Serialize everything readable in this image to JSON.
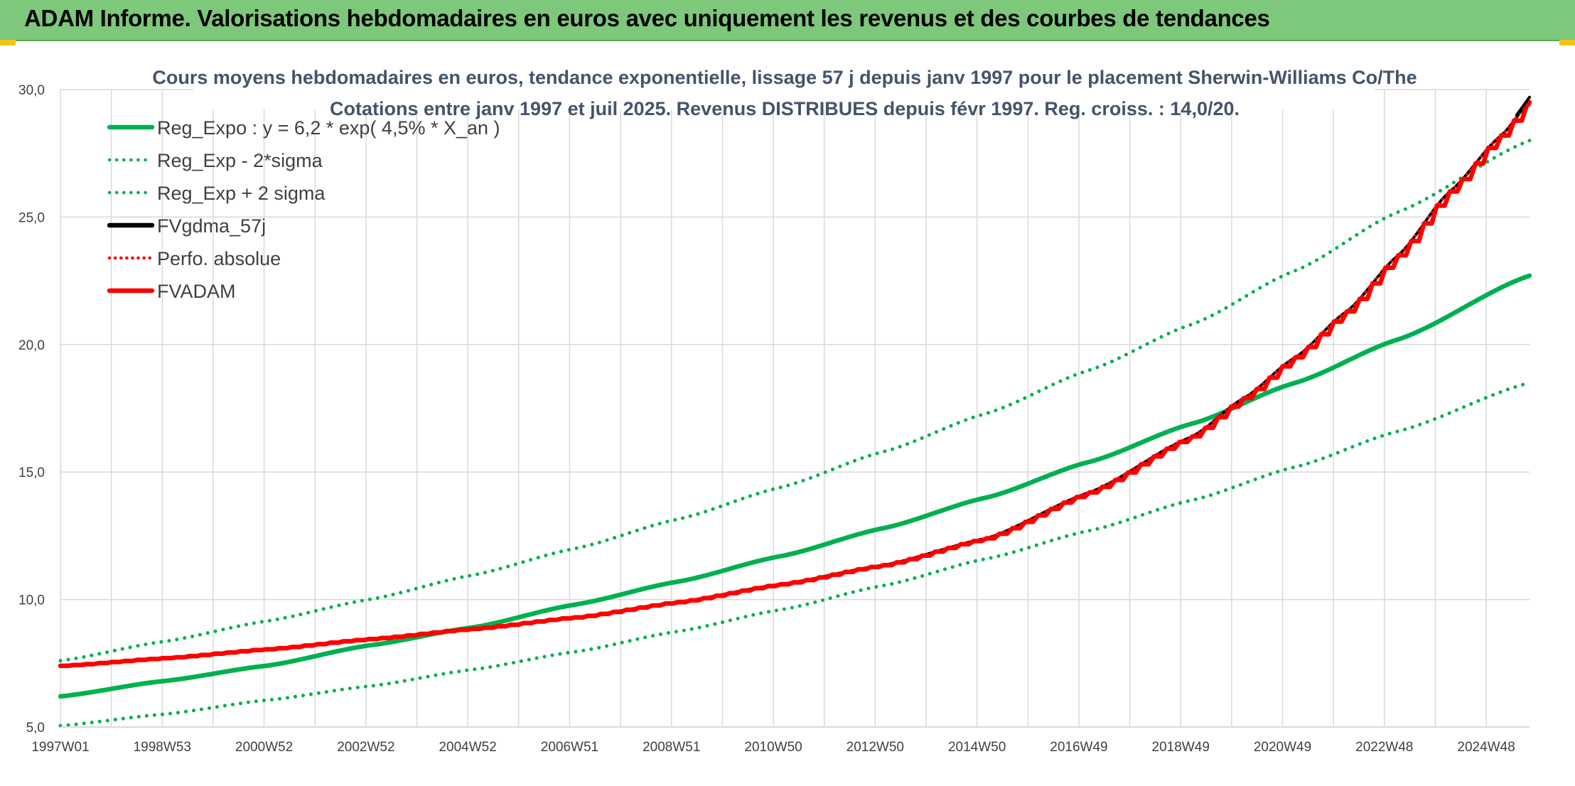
{
  "header": {
    "title": "ADAM Informe. Valorisations hebdomadaires en euros avec uniquement les revenus et des courbes de tendances"
  },
  "colors": {
    "header_bg": "#7dc87a",
    "trend_green": "#00b050",
    "fvadam_red": "#ff0000",
    "fvgdma_black": "#000000",
    "title_text": "#44546a"
  },
  "chart_data": {
    "type": "line",
    "title": "Cours moyens hebdomadaires en euros, tendance exponentielle, lissage 57 j depuis janv 1997 pour le placement Sherwin-Williams Co/The",
    "subtitle": "Cotations entre janv 1997 et juil 2025. Revenus DISTRIBUES depuis févr 1997. Reg. croiss. : 14,0/20.",
    "xlabel": "",
    "ylabel": "",
    "ylim": [
      5,
      30
    ],
    "xlim": [
      1997.0,
      2025.55
    ],
    "y_ticks": [
      "5,0",
      "10,0",
      "15,0",
      "20,0",
      "25,0",
      "30,0"
    ],
    "x_tick_labels": [
      "1997W01",
      "1998W53",
      "2000W52",
      "2002W52",
      "2004W52",
      "2006W51",
      "2008W51",
      "2010W50",
      "2012W50",
      "2014W50",
      "2016W49",
      "2018W49",
      "2020W49",
      "2022W48",
      "2024W48"
    ],
    "grid": true,
    "legend_position": "top-left",
    "series": [
      {
        "name": "Reg_Expo : y = 6,2 * exp( 4,5% *  X_an )",
        "style": "solid-green",
        "x": [
          1997,
          1999,
          2001,
          2003,
          2005,
          2007,
          2009,
          2011,
          2013,
          2015,
          2017,
          2019,
          2021,
          2023,
          2025.55
        ],
        "values": [
          6.2,
          6.8,
          7.4,
          8.2,
          8.9,
          9.8,
          10.7,
          11.7,
          12.8,
          14.0,
          15.4,
          16.9,
          18.5,
          20.2,
          22.7
        ]
      },
      {
        "name": "Reg_Exp - 2*sigma",
        "style": "dotted-green",
        "x": [
          1997,
          1999,
          2001,
          2003,
          2005,
          2007,
          2009,
          2011,
          2013,
          2015,
          2017,
          2019,
          2021,
          2023,
          2025.55
        ],
        "values": [
          5.05,
          5.5,
          6.05,
          6.6,
          7.25,
          7.95,
          8.75,
          9.6,
          10.55,
          11.6,
          12.7,
          13.9,
          15.2,
          16.6,
          18.5
        ]
      },
      {
        "name": "Reg_Exp + 2 sigma",
        "style": "dotted-green",
        "x": [
          1997,
          1999,
          2001,
          2003,
          2005,
          2007,
          2009,
          2011,
          2013,
          2015,
          2017,
          2019,
          2021,
          2023,
          2025.55
        ],
        "values": [
          7.6,
          8.35,
          9.15,
          10.0,
          10.95,
          12.0,
          13.15,
          14.4,
          15.8,
          17.3,
          19.0,
          20.8,
          22.9,
          25.2,
          28.0
        ]
      },
      {
        "name": "FVgdma_57j",
        "style": "solid-black",
        "x": [
          1997,
          1999,
          2001,
          2003,
          2005,
          2007,
          2009,
          2011,
          2013,
          2015,
          2017,
          2019,
          2020,
          2021,
          2022,
          2023,
          2024,
          2025,
          2025.55
        ],
        "values": [
          7.4,
          7.7,
          8.05,
          8.45,
          8.85,
          9.3,
          9.9,
          10.6,
          11.35,
          12.4,
          14.2,
          16.4,
          17.9,
          19.5,
          21.3,
          23.5,
          26.0,
          28.2,
          29.5
        ]
      },
      {
        "name": "Perfo. absolue",
        "style": "dotted-red",
        "x": [
          1997,
          1999,
          2001,
          2003,
          2005,
          2007,
          2009,
          2011,
          2013,
          2015,
          2017,
          2019,
          2020,
          2021,
          2022,
          2023,
          2024,
          2025,
          2025.55
        ],
        "values": [
          7.4,
          7.7,
          8.05,
          8.45,
          8.85,
          9.3,
          9.9,
          10.6,
          11.35,
          12.4,
          14.2,
          16.4,
          17.9,
          19.5,
          21.3,
          23.5,
          26.0,
          28.2,
          29.5
        ]
      },
      {
        "name": "FVADAM",
        "style": "solid-red-step",
        "x": [
          1997,
          1999,
          2001,
          2003,
          2005,
          2007,
          2009,
          2011,
          2013,
          2015,
          2017,
          2019,
          2020,
          2021,
          2022,
          2023,
          2024,
          2025,
          2025.55
        ],
        "values": [
          7.4,
          7.7,
          8.05,
          8.45,
          8.85,
          9.3,
          9.9,
          10.6,
          11.35,
          12.4,
          14.2,
          16.4,
          17.9,
          19.5,
          21.3,
          23.5,
          26.0,
          28.2,
          29.5
        ]
      }
    ]
  }
}
